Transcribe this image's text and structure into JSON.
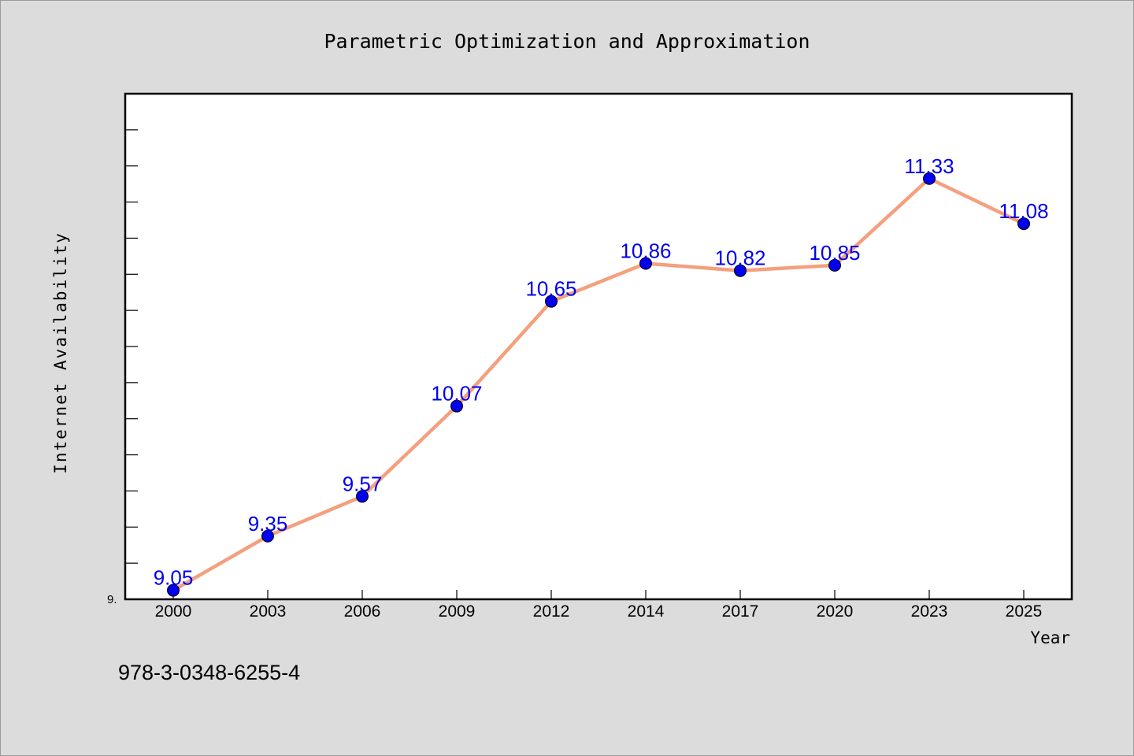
{
  "chart_data": {
    "type": "line",
    "title": "Parametric Optimization and Approximation",
    "xlabel": "Year",
    "ylabel": "Internet Availability",
    "categories": [
      "2000",
      "2003",
      "2006",
      "2009",
      "2012",
      "2014",
      "2017",
      "2020",
      "2023",
      "2025"
    ],
    "series": [
      {
        "values": [
          9.05,
          9.35,
          9.57,
          10.07,
          10.65,
          10.86,
          10.82,
          10.85,
          11.33,
          11.08
        ],
        "labels": [
          "9.05",
          "9.35",
          "9.57",
          "10.07",
          "10.65",
          "10.86",
          "10.82",
          "10.85",
          "11.33",
          "11.08"
        ]
      }
    ],
    "y_tick_label": "9.",
    "ylim": [
      9.0,
      11.8
    ],
    "grid": false,
    "colors": {
      "line": "#f4a07e",
      "marker": "#0000ee",
      "data_label": "#0000ee",
      "plot_background": "#ffffff",
      "page_background": "#dcdcdc"
    }
  },
  "footer": {
    "isbn": "978-3-0348-6255-4"
  }
}
